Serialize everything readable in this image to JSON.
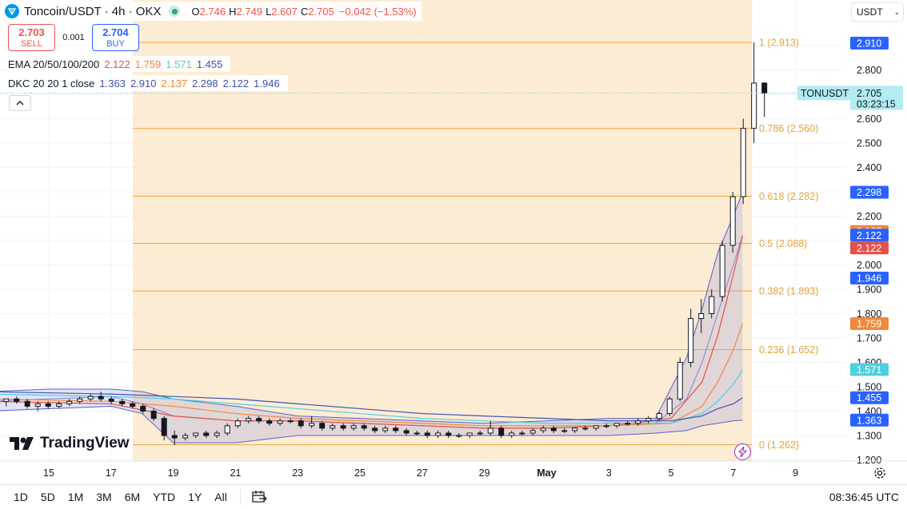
{
  "header": {
    "symbol": "Toncoin/USDT · 4h · OKX",
    "ohlc": [
      {
        "k": "O",
        "v": "2.746"
      },
      {
        "k": "H",
        "v": "2.749"
      },
      {
        "k": "L",
        "v": "2.607"
      },
      {
        "k": "C",
        "v": "2.705"
      }
    ],
    "change": "−0.042 (−1.53%)"
  },
  "trade": {
    "sell_price": "2.703",
    "sell_label": "SELL",
    "spread": "0.001",
    "buy_price": "2.704",
    "buy_label": "BUY"
  },
  "ema": {
    "label": "EMA 20/50/100/200",
    "values": [
      "2.122",
      "1.759",
      "1.571",
      "1.455"
    ],
    "colors": [
      "#e0524b",
      "#f0883e",
      "#4dd0e1",
      "#3f51b5"
    ]
  },
  "dkc": {
    "label": "DKC 20 20 1 close",
    "values": [
      "1.363",
      "2.910",
      "2.137",
      "2.298",
      "2.122",
      "1.946"
    ],
    "colors": [
      "#3f51b5",
      "#3f51b5",
      "#f0883e",
      "#3f51b5",
      "#3f51b5",
      "#3f51b5"
    ]
  },
  "currency_selector": "USDT",
  "brand": "TradingView",
  "time_ranges": [
    "1D",
    "5D",
    "1M",
    "3M",
    "6M",
    "YTD",
    "1Y",
    "All"
  ],
  "clock": "08:36:45 UTC",
  "colors": {
    "fib_fill": "#fde9cc",
    "fib_line": "#f0a53a",
    "fib_text": "#e3a33a",
    "up_candle": "#ffffff",
    "down_candle": "#131722",
    "channel": "#5b5fc7",
    "axis_blue": "#2962ff"
  },
  "chart_data": {
    "type": "candlestick",
    "timeframe": "4h",
    "x_ticks": [
      "15",
      "17",
      "19",
      "21",
      "23",
      "25",
      "27",
      "29",
      "May",
      "3",
      "5",
      "7",
      "9"
    ],
    "y_ticks": [
      "1.200",
      "1.300",
      "1.400",
      "1.500",
      "1.600",
      "1.700",
      "1.800",
      "1.900",
      "2.000",
      "2.100",
      "2.200",
      "2.300",
      "2.400",
      "2.500",
      "2.600",
      "2.700",
      "2.800",
      "2.900"
    ],
    "ylim": [
      1.2,
      2.95
    ],
    "last_price": {
      "symbol": "TONUSDT",
      "price": "2.705",
      "countdown": "03:23:15"
    },
    "price_labels": [
      {
        "value": "2.910",
        "color": "#2962ff"
      },
      {
        "value": "2.298",
        "color": "#2962ff"
      },
      {
        "value": "2.137",
        "color": "#f0883e"
      },
      {
        "value": "2.122",
        "color": "#2962ff"
      },
      {
        "value": "2.122",
        "color": "#e0524b"
      },
      {
        "value": "1.946",
        "color": "#2962ff"
      },
      {
        "value": "1.759",
        "color": "#f0883e"
      },
      {
        "value": "1.571",
        "color": "#4dd0e1"
      },
      {
        "value": "1.455",
        "color": "#2962ff"
      },
      {
        "value": "1.363",
        "color": "#2962ff"
      }
    ],
    "fibonacci": [
      {
        "label": "1 (2.913)",
        "value": 2.913
      },
      {
        "label": "0.786 (2.560)",
        "value": 2.56
      },
      {
        "label": "0.618 (2.282)",
        "value": 2.282
      },
      {
        "label": "0.5 (2.088)",
        "value": 2.088
      },
      {
        "label": "0.382 (1.893)",
        "value": 1.893
      },
      {
        "label": "0.236 (1.652)",
        "value": 1.652
      },
      {
        "label": "0 (1.262)",
        "value": 1.262
      }
    ],
    "fib_range_days": [
      17.7,
      7.3
    ],
    "ema_series": [
      {
        "name": "EMA 20",
        "color": "#e0524b",
        "x": [
          13.0,
          17.0,
          19.0,
          21.0,
          23.0,
          25.0,
          27.0,
          29.0,
          31.0,
          33.0,
          35.0,
          36.0,
          36.5,
          37.0,
          37.3
        ],
        "y": [
          1.44,
          1.43,
          1.38,
          1.36,
          1.36,
          1.35,
          1.34,
          1.33,
          1.33,
          1.34,
          1.37,
          1.52,
          1.71,
          1.96,
          2.12
        ]
      },
      {
        "name": "EMA 50",
        "color": "#f0883e",
        "x": [
          13.0,
          17.0,
          19.0,
          21.0,
          23.0,
          25.0,
          27.0,
          29.0,
          31.0,
          33.0,
          35.0,
          36.0,
          36.5,
          37.0,
          37.3
        ],
        "y": [
          1.45,
          1.44,
          1.42,
          1.39,
          1.37,
          1.36,
          1.35,
          1.34,
          1.34,
          1.34,
          1.35,
          1.42,
          1.52,
          1.65,
          1.76
        ]
      },
      {
        "name": "EMA 100",
        "color": "#4dd0e1",
        "x": [
          13.0,
          17.0,
          19.0,
          21.0,
          23.0,
          25.0,
          27.0,
          29.0,
          31.0,
          33.0,
          35.0,
          36.0,
          36.5,
          37.0,
          37.3
        ],
        "y": [
          1.47,
          1.46,
          1.45,
          1.43,
          1.41,
          1.39,
          1.37,
          1.36,
          1.35,
          1.35,
          1.35,
          1.39,
          1.44,
          1.51,
          1.57
        ]
      },
      {
        "name": "EMA 200",
        "color": "#3f51b5",
        "x": [
          13.0,
          17.0,
          19.0,
          21.0,
          23.0,
          25.0,
          27.0,
          29.0,
          31.0,
          33.0,
          35.0,
          36.0,
          36.5,
          37.0,
          37.3
        ],
        "y": [
          1.48,
          1.47,
          1.46,
          1.45,
          1.43,
          1.41,
          1.39,
          1.38,
          1.37,
          1.36,
          1.36,
          1.38,
          1.41,
          1.43,
          1.455
        ]
      }
    ],
    "channel": {
      "x": [
        13.0,
        15.0,
        17.0,
        18.0,
        19.0,
        21.0,
        23.0,
        25.0,
        27.0,
        29.0,
        31.0,
        33.0,
        34.5,
        35.5,
        36.0,
        36.5,
        37.0,
        37.3
      ],
      "upper": [
        1.48,
        1.49,
        1.49,
        1.48,
        1.45,
        1.42,
        1.38,
        1.37,
        1.36,
        1.35,
        1.36,
        1.37,
        1.37,
        1.62,
        1.82,
        2.05,
        2.2,
        2.298
      ],
      "middle": [
        1.44,
        1.45,
        1.46,
        1.43,
        1.38,
        1.36,
        1.36,
        1.35,
        1.34,
        1.33,
        1.33,
        1.34,
        1.35,
        1.45,
        1.6,
        1.8,
        2.0,
        2.122
      ],
      "lower": [
        1.4,
        1.41,
        1.42,
        1.39,
        1.27,
        1.27,
        1.3,
        1.3,
        1.3,
        1.3,
        1.3,
        1.3,
        1.31,
        1.32,
        1.34,
        1.35,
        1.36,
        1.363
      ]
    },
    "candles": [
      {
        "t": 13.0,
        "o": 1.44,
        "h": 1.46,
        "l": 1.42,
        "c": 1.45
      },
      {
        "t": 13.33,
        "o": 1.45,
        "h": 1.47,
        "l": 1.43,
        "c": 1.46
      },
      {
        "t": 13.67,
        "o": 1.46,
        "h": 1.47,
        "l": 1.43,
        "c": 1.44
      },
      {
        "t": 14.0,
        "o": 1.44,
        "h": 1.45,
        "l": 1.42,
        "c": 1.45
      },
      {
        "t": 14.33,
        "o": 1.45,
        "h": 1.46,
        "l": 1.43,
        "c": 1.44
      },
      {
        "t": 14.67,
        "o": 1.44,
        "h": 1.45,
        "l": 1.41,
        "c": 1.42
      },
      {
        "t": 15.0,
        "o": 1.42,
        "h": 1.44,
        "l": 1.4,
        "c": 1.43
      },
      {
        "t": 15.33,
        "o": 1.43,
        "h": 1.44,
        "l": 1.41,
        "c": 1.42
      },
      {
        "t": 15.67,
        "o": 1.42,
        "h": 1.44,
        "l": 1.41,
        "c": 1.43
      },
      {
        "t": 16.0,
        "o": 1.43,
        "h": 1.45,
        "l": 1.42,
        "c": 1.44
      },
      {
        "t": 16.33,
        "o": 1.44,
        "h": 1.46,
        "l": 1.43,
        "c": 1.45
      },
      {
        "t": 16.67,
        "o": 1.45,
        "h": 1.47,
        "l": 1.44,
        "c": 1.46
      },
      {
        "t": 17.0,
        "o": 1.46,
        "h": 1.48,
        "l": 1.44,
        "c": 1.45
      },
      {
        "t": 17.33,
        "o": 1.45,
        "h": 1.46,
        "l": 1.43,
        "c": 1.44
      },
      {
        "t": 17.67,
        "o": 1.44,
        "h": 1.45,
        "l": 1.42,
        "c": 1.43
      },
      {
        "t": 18.0,
        "o": 1.43,
        "h": 1.44,
        "l": 1.41,
        "c": 1.42
      },
      {
        "t": 18.33,
        "o": 1.42,
        "h": 1.43,
        "l": 1.39,
        "c": 1.4
      },
      {
        "t": 18.67,
        "o": 1.4,
        "h": 1.41,
        "l": 1.36,
        "c": 1.37
      },
      {
        "t": 19.0,
        "o": 1.37,
        "h": 1.38,
        "l": 1.28,
        "c": 1.3
      },
      {
        "t": 19.33,
        "o": 1.3,
        "h": 1.32,
        "l": 1.26,
        "c": 1.29
      },
      {
        "t": 19.67,
        "o": 1.29,
        "h": 1.31,
        "l": 1.28,
        "c": 1.3
      },
      {
        "t": 20.0,
        "o": 1.3,
        "h": 1.31,
        "l": 1.29,
        "c": 1.31
      },
      {
        "t": 20.33,
        "o": 1.31,
        "h": 1.32,
        "l": 1.29,
        "c": 1.3
      },
      {
        "t": 20.67,
        "o": 1.3,
        "h": 1.32,
        "l": 1.29,
        "c": 1.31
      },
      {
        "t": 21.0,
        "o": 1.31,
        "h": 1.35,
        "l": 1.3,
        "c": 1.34
      },
      {
        "t": 21.33,
        "o": 1.34,
        "h": 1.37,
        "l": 1.33,
        "c": 1.36
      },
      {
        "t": 21.67,
        "o": 1.36,
        "h": 1.38,
        "l": 1.35,
        "c": 1.37
      },
      {
        "t": 22.0,
        "o": 1.37,
        "h": 1.38,
        "l": 1.35,
        "c": 1.36
      },
      {
        "t": 22.33,
        "o": 1.36,
        "h": 1.37,
        "l": 1.34,
        "c": 1.35
      },
      {
        "t": 22.67,
        "o": 1.35,
        "h": 1.37,
        "l": 1.34,
        "c": 1.36
      },
      {
        "t": 23.0,
        "o": 1.36,
        "h": 1.37,
        "l": 1.35,
        "c": 1.36
      },
      {
        "t": 23.33,
        "o": 1.36,
        "h": 1.37,
        "l": 1.33,
        "c": 1.34
      },
      {
        "t": 23.67,
        "o": 1.34,
        "h": 1.38,
        "l": 1.33,
        "c": 1.35
      },
      {
        "t": 24.0,
        "o": 1.35,
        "h": 1.36,
        "l": 1.32,
        "c": 1.33
      },
      {
        "t": 24.33,
        "o": 1.33,
        "h": 1.35,
        "l": 1.32,
        "c": 1.34
      },
      {
        "t": 24.67,
        "o": 1.34,
        "h": 1.35,
        "l": 1.32,
        "c": 1.33
      },
      {
        "t": 25.0,
        "o": 1.33,
        "h": 1.35,
        "l": 1.32,
        "c": 1.34
      },
      {
        "t": 25.33,
        "o": 1.34,
        "h": 1.35,
        "l": 1.32,
        "c": 1.33
      },
      {
        "t": 25.67,
        "o": 1.33,
        "h": 1.34,
        "l": 1.31,
        "c": 1.32
      },
      {
        "t": 26.0,
        "o": 1.32,
        "h": 1.34,
        "l": 1.31,
        "c": 1.33
      },
      {
        "t": 26.33,
        "o": 1.33,
        "h": 1.34,
        "l": 1.31,
        "c": 1.32
      },
      {
        "t": 26.67,
        "o": 1.32,
        "h": 1.33,
        "l": 1.3,
        "c": 1.31
      },
      {
        "t": 27.0,
        "o": 1.31,
        "h": 1.32,
        "l": 1.3,
        "c": 1.31
      },
      {
        "t": 27.33,
        "o": 1.31,
        "h": 1.32,
        "l": 1.29,
        "c": 1.3
      },
      {
        "t": 27.67,
        "o": 1.3,
        "h": 1.32,
        "l": 1.29,
        "c": 1.31
      },
      {
        "t": 28.0,
        "o": 1.31,
        "h": 1.32,
        "l": 1.29,
        "c": 1.3
      },
      {
        "t": 28.33,
        "o": 1.3,
        "h": 1.31,
        "l": 1.29,
        "c": 1.3
      },
      {
        "t": 28.67,
        "o": 1.3,
        "h": 1.31,
        "l": 1.29,
        "c": 1.31
      },
      {
        "t": 29.0,
        "o": 1.31,
        "h": 1.32,
        "l": 1.3,
        "c": 1.31
      },
      {
        "t": 29.33,
        "o": 1.31,
        "h": 1.36,
        "l": 1.3,
        "c": 1.33
      },
      {
        "t": 29.67,
        "o": 1.33,
        "h": 1.34,
        "l": 1.29,
        "c": 1.3
      },
      {
        "t": 30.0,
        "o": 1.3,
        "h": 1.32,
        "l": 1.29,
        "c": 1.31
      },
      {
        "t": 30.33,
        "o": 1.31,
        "h": 1.32,
        "l": 1.3,
        "c": 1.31
      },
      {
        "t": 30.67,
        "o": 1.31,
        "h": 1.33,
        "l": 1.3,
        "c": 1.32
      },
      {
        "t": 31.0,
        "o": 1.32,
        "h": 1.34,
        "l": 1.31,
        "c": 1.33
      },
      {
        "t": 31.33,
        "o": 1.33,
        "h": 1.34,
        "l": 1.31,
        "c": 1.32
      },
      {
        "t": 31.67,
        "o": 1.32,
        "h": 1.33,
        "l": 1.31,
        "c": 1.32
      },
      {
        "t": 32.0,
        "o": 1.32,
        "h": 1.33,
        "l": 1.31,
        "c": 1.33
      },
      {
        "t": 32.33,
        "o": 1.33,
        "h": 1.34,
        "l": 1.32,
        "c": 1.33
      },
      {
        "t": 32.67,
        "o": 1.33,
        "h": 1.34,
        "l": 1.32,
        "c": 1.34
      },
      {
        "t": 33.0,
        "o": 1.34,
        "h": 1.35,
        "l": 1.33,
        "c": 1.34
      },
      {
        "t": 33.33,
        "o": 1.34,
        "h": 1.35,
        "l": 1.33,
        "c": 1.35
      },
      {
        "t": 33.67,
        "o": 1.35,
        "h": 1.36,
        "l": 1.34,
        "c": 1.35
      },
      {
        "t": 34.0,
        "o": 1.35,
        "h": 1.37,
        "l": 1.34,
        "c": 1.36
      },
      {
        "t": 34.33,
        "o": 1.36,
        "h": 1.38,
        "l": 1.35,
        "c": 1.37
      },
      {
        "t": 34.67,
        "o": 1.37,
        "h": 1.4,
        "l": 1.36,
        "c": 1.39
      },
      {
        "t": 35.0,
        "o": 1.39,
        "h": 1.46,
        "l": 1.38,
        "c": 1.45
      },
      {
        "t": 35.33,
        "o": 1.45,
        "h": 1.62,
        "l": 1.44,
        "c": 1.6
      },
      {
        "t": 35.67,
        "o": 1.6,
        "h": 1.82,
        "l": 1.58,
        "c": 1.78
      },
      {
        "t": 36.0,
        "o": 1.78,
        "h": 1.86,
        "l": 1.72,
        "c": 1.8
      },
      {
        "t": 36.33,
        "o": 1.8,
        "h": 1.9,
        "l": 1.78,
        "c": 1.87
      },
      {
        "t": 36.67,
        "o": 1.87,
        "h": 2.1,
        "l": 1.85,
        "c": 2.08
      },
      {
        "t": 37.0,
        "o": 2.08,
        "h": 2.3,
        "l": 2.05,
        "c": 2.28
      },
      {
        "t": 37.33,
        "o": 2.28,
        "h": 2.6,
        "l": 2.25,
        "c": 2.56
      },
      {
        "t": 37.67,
        "o": 2.56,
        "h": 2.913,
        "l": 2.5,
        "c": 2.746
      },
      {
        "t": 38.0,
        "o": 2.746,
        "h": 2.749,
        "l": 2.607,
        "c": 2.705
      }
    ]
  }
}
